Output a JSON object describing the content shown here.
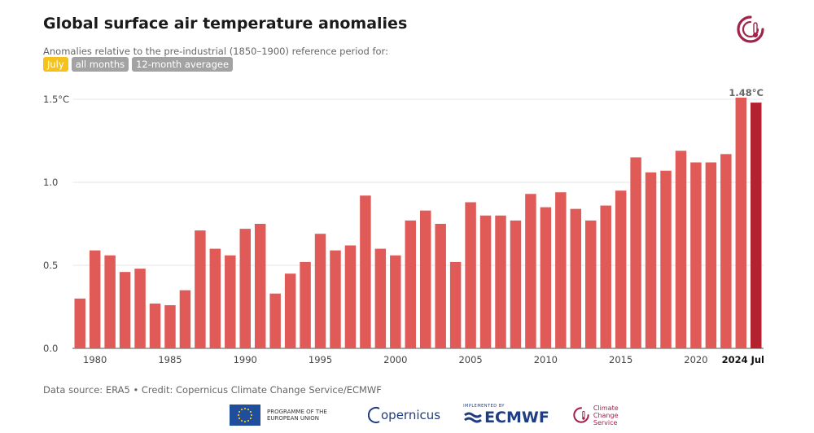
{
  "header": {
    "title": "Global surface air temperature anomalies",
    "subtitle": "Anomalies relative to the pre-industrial (1850–1900) reference period for:",
    "filters": [
      {
        "label": "July",
        "active": true
      },
      {
        "label": "all months",
        "active": false
      },
      {
        "label": "12-month averagee",
        "active": false
      }
    ]
  },
  "chart_data": {
    "type": "bar",
    "title": "Global surface air temperature anomalies",
    "ylabel": "",
    "xlabel": "",
    "y_unit": "°C",
    "ylim": [
      0,
      1.5
    ],
    "yticks": [
      {
        "value": 0.0,
        "label": "0.0"
      },
      {
        "value": 0.5,
        "label": "0.5"
      },
      {
        "value": 1.0,
        "label": "1.0"
      },
      {
        "value": 1.5,
        "label": "1.5°C"
      }
    ],
    "x_tick_labels": [
      {
        "year": 1980,
        "label": "1980"
      },
      {
        "year": 1985,
        "label": "1985"
      },
      {
        "year": 1990,
        "label": "1990"
      },
      {
        "year": 1995,
        "label": "1995"
      },
      {
        "year": 2000,
        "label": "2000"
      },
      {
        "year": 2005,
        "label": "2005"
      },
      {
        "year": 2010,
        "label": "2010"
      },
      {
        "year": 2015,
        "label": "2015"
      },
      {
        "year": 2020,
        "label": "2020"
      },
      {
        "year": 2024,
        "label": "2024 Jul",
        "bold": true
      }
    ],
    "x": [
      1979,
      1980,
      1981,
      1982,
      1983,
      1984,
      1985,
      1986,
      1987,
      1988,
      1989,
      1990,
      1991,
      1992,
      1993,
      1994,
      1995,
      1996,
      1997,
      1998,
      1999,
      2000,
      2001,
      2002,
      2003,
      2004,
      2005,
      2006,
      2007,
      2008,
      2009,
      2010,
      2011,
      2012,
      2013,
      2014,
      2015,
      2016,
      2017,
      2018,
      2019,
      2020,
      2021,
      2022,
      2023,
      2024
    ],
    "values": [
      0.3,
      0.59,
      0.56,
      0.46,
      0.48,
      0.27,
      0.26,
      0.35,
      0.71,
      0.6,
      0.56,
      0.72,
      0.75,
      0.33,
      0.45,
      0.52,
      0.69,
      0.59,
      0.62,
      0.92,
      0.6,
      0.56,
      0.77,
      0.83,
      0.75,
      0.52,
      0.88,
      0.8,
      0.8,
      0.77,
      0.93,
      0.85,
      0.94,
      0.84,
      0.77,
      0.86,
      0.95,
      1.15,
      1.06,
      1.07,
      1.19,
      1.12,
      1.12,
      1.17,
      1.51,
      1.48
    ],
    "bar_color": "#e05a57",
    "highlight_color": "#b3222e",
    "highlight_index": 45,
    "annotation": {
      "label": "1.48°C",
      "value": 1.48
    },
    "grid": true
  },
  "footer": {
    "source": "Data source: ERA5 • Credit: Copernicus Climate Change Service/ECMWF",
    "logos": {
      "eu": "PROGRAMME OF THE EUROPEAN UNION",
      "copernicus": "opernicus",
      "ecmwf_note": "IMPLEMENTED BY",
      "ecmwf": "ECMWF",
      "c3s": "Climate Change Service"
    }
  }
}
